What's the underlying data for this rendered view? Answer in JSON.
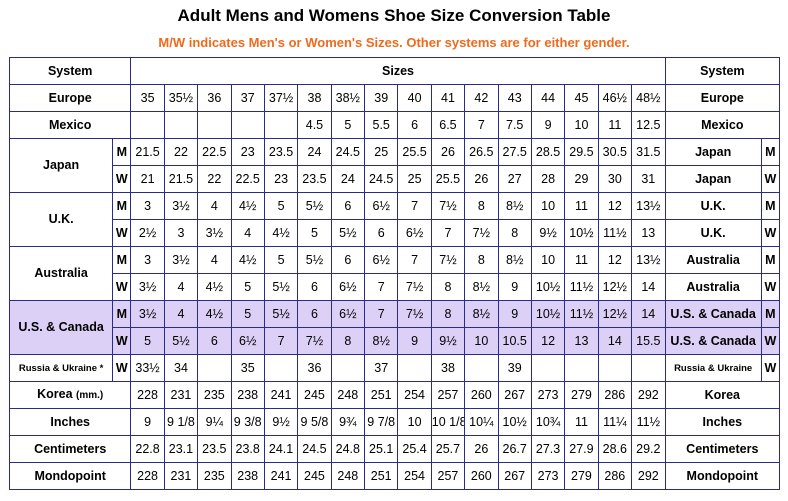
{
  "title": "Adult Mens and Womens Shoe Size Conversion Table",
  "subtitle": "M/W indicates Men's or Women's Sizes. Other systems are for either gender.",
  "header": {
    "system": "System",
    "sizes": "Sizes",
    "system_right": "System"
  },
  "colors": {
    "accent_orange": "#f06a1c",
    "border_blue": "#2b2b8c",
    "us_highlight": "#dcd0f6"
  },
  "rows": [
    {
      "label": "Europe",
      "gender": "",
      "values": [
        "35",
        "35½",
        "36",
        "37",
        "37½",
        "38",
        "38½",
        "39",
        "40",
        "41",
        "42",
        "43",
        "44",
        "45",
        "46½",
        "48½"
      ],
      "right_label": "Europe",
      "right_gender": ""
    },
    {
      "label": "Mexico",
      "gender": "",
      "values": [
        "",
        "",
        "",
        "",
        "",
        "4.5",
        "5",
        "5.5",
        "6",
        "6.5",
        "7",
        "7.5",
        "9",
        "10",
        "11",
        "12.5"
      ],
      "right_label": "Mexico",
      "right_gender": ""
    },
    {
      "label": "Japan",
      "gender": "M",
      "values": [
        "21.5",
        "22",
        "22.5",
        "23",
        "23.5",
        "24",
        "24.5",
        "25",
        "25.5",
        "26",
        "26.5",
        "27.5",
        "28.5",
        "29.5",
        "30.5",
        "31.5"
      ],
      "right_label": "Japan",
      "right_gender": "M"
    },
    {
      "label": "",
      "gender": "W",
      "values": [
        "21",
        "21.5",
        "22",
        "22.5",
        "23",
        "23.5",
        "24",
        "24.5",
        "25",
        "25.5",
        "26",
        "27",
        "28",
        "29",
        "30",
        "31"
      ],
      "right_label": "Japan",
      "right_gender": "W"
    },
    {
      "label": "U.K.",
      "gender": "M",
      "values": [
        "3",
        "3½",
        "4",
        "4½",
        "5",
        "5½",
        "6",
        "6½",
        "7",
        "7½",
        "8",
        "8½",
        "10",
        "11",
        "12",
        "13½"
      ],
      "right_label": "U.K.",
      "right_gender": "M"
    },
    {
      "label": "",
      "gender": "W",
      "values": [
        "2½",
        "3",
        "3½",
        "4",
        "4½",
        "5",
        "5½",
        "6",
        "6½",
        "7",
        "7½",
        "8",
        "9½",
        "10½",
        "11½",
        "13"
      ],
      "right_label": "U.K.",
      "right_gender": "W"
    },
    {
      "label": "Australia",
      "gender": "M",
      "values": [
        "3",
        "3½",
        "4",
        "4½",
        "5",
        "5½",
        "6",
        "6½",
        "7",
        "7½",
        "8",
        "8½",
        "10",
        "11",
        "12",
        "13½"
      ],
      "right_label": "Australia",
      "right_gender": "M"
    },
    {
      "label": "",
      "gender": "W",
      "values": [
        "3½",
        "4",
        "4½",
        "5",
        "5½",
        "6",
        "6½",
        "7",
        "7½",
        "8",
        "8½",
        "9",
        "10½",
        "11½",
        "12½",
        "14"
      ],
      "right_label": "Australia",
      "right_gender": "W"
    },
    {
      "label": "U.S. & Canada",
      "gender": "M",
      "values": [
        "3½",
        "4",
        "4½",
        "5",
        "5½",
        "6",
        "6½",
        "7",
        "7½",
        "8",
        "8½",
        "9",
        "10½",
        "11½",
        "12½",
        "14"
      ],
      "right_label": "U.S. & Canada",
      "right_gender": "M"
    },
    {
      "label": "",
      "gender": "W",
      "values": [
        "5",
        "5½",
        "6",
        "6½",
        "7",
        "7½",
        "8",
        "8½",
        "9",
        "9½",
        "10",
        "10.5",
        "12",
        "13",
        "14",
        "15.5"
      ],
      "right_label": "U.S. & Canada",
      "right_gender": "W"
    },
    {
      "label": "Russia & Ukraine *",
      "gender": "W",
      "values": [
        "33½",
        "34",
        "",
        "35",
        "",
        "36",
        "",
        "37",
        "",
        "38",
        "",
        "39",
        "",
        "",
        "",
        ""
      ],
      "right_label": "Russia & Ukraine",
      "right_gender": "W"
    },
    {
      "label": "Korea",
      "unit": "(mm.)",
      "gender": "",
      "values": [
        "228",
        "231",
        "235",
        "238",
        "241",
        "245",
        "248",
        "251",
        "254",
        "257",
        "260",
        "267",
        "273",
        "279",
        "286",
        "292"
      ],
      "right_label": "Korea",
      "right_gender": ""
    },
    {
      "label": "Inches",
      "gender": "",
      "values": [
        "9",
        "9 1/8",
        "9¼",
        "9 3/8",
        "9½",
        "9 5/8",
        "9¾",
        "9 7/8",
        "10",
        "10 1/8",
        "10¼",
        "10½",
        "10¾",
        "11",
        "11¼",
        "11½"
      ],
      "right_label": "Inches",
      "right_gender": ""
    },
    {
      "label": "Centimeters",
      "gender": "",
      "values": [
        "22.8",
        "23.1",
        "23.5",
        "23.8",
        "24.1",
        "24.5",
        "24.8",
        "25.1",
        "25.4",
        "25.7",
        "26",
        "26.7",
        "27.3",
        "27.9",
        "28.6",
        "29.2"
      ],
      "right_label": "Centimeters",
      "right_gender": ""
    },
    {
      "label": "Mondopoint",
      "gender": "",
      "values": [
        "228",
        "231",
        "235",
        "238",
        "241",
        "245",
        "248",
        "251",
        "254",
        "257",
        "260",
        "267",
        "273",
        "279",
        "286",
        "292"
      ],
      "right_label": "Mondopoint",
      "right_gender": ""
    }
  ]
}
